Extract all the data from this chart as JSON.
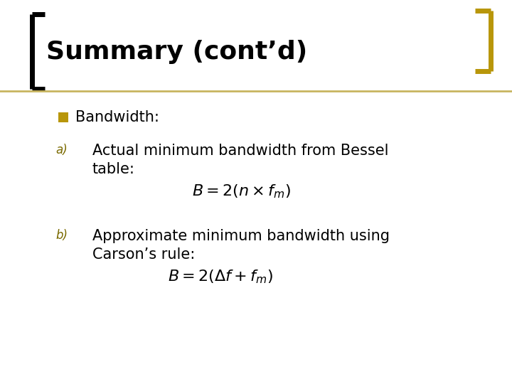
{
  "title": "Summary (cont’d)",
  "title_color": "#000000",
  "title_fontsize": 26,
  "background_color": "#ffffff",
  "accent_color": "#c8b560",
  "bracket_color": "#b8960a",
  "bullet_color": "#b8960a",
  "bullet_n_text": "Bandwidth:",
  "bullet_a_label": "a)",
  "bullet_a_line1": "Actual minimum bandwidth from Bessel",
  "bullet_a_line2": "table:",
  "formula_a": "$B = 2(n \\times f_m)$",
  "bullet_b_label": "b)",
  "bullet_b_line1": "Approximate minimum bandwidth using",
  "bullet_b_line2": "Carson’s rule:",
  "formula_b": "$B = 2(\\Delta f + f_m)$",
  "text_color": "#000000",
  "label_color": "#7a6a00",
  "body_fontsize": 15,
  "label_fontsize": 12,
  "formula_fontsize": 14
}
